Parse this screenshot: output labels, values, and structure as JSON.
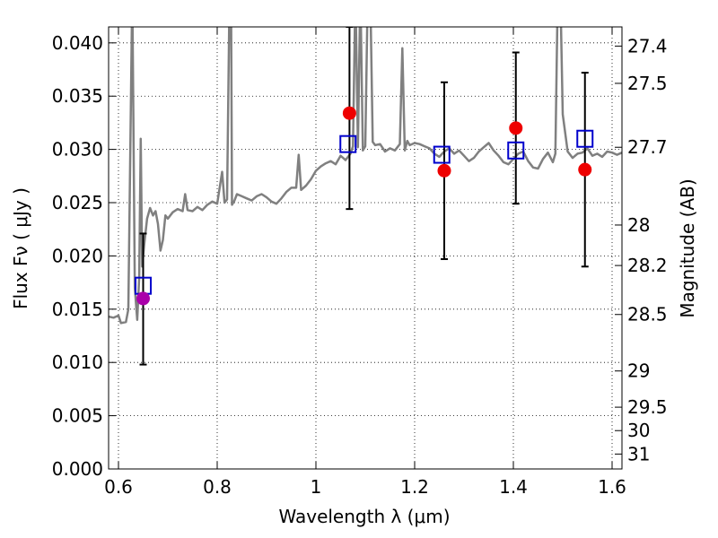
{
  "chart_data": {
    "type": "line",
    "xlabel": "Wavelength  λ (μm)",
    "ylabel": "Flux  Fν  ( μJy )",
    "ylabel_right": "Magnitude (AB)",
    "xlim": [
      0.58,
      1.62
    ],
    "ylim": [
      0.0,
      0.0415
    ],
    "x_ticks": [
      0.6,
      0.8,
      1.0,
      1.2,
      1.4,
      1.6
    ],
    "x_tick_labels": [
      "0.6",
      "0.8",
      "1",
      "1.2",
      "1.4",
      "1.6"
    ],
    "y_ticks": [
      0.0,
      0.005,
      0.01,
      0.015,
      0.02,
      0.025,
      0.03,
      0.035,
      0.04
    ],
    "y_tick_labels": [
      "0.000",
      "0.005",
      "0.010",
      "0.015",
      "0.020",
      "0.025",
      "0.030",
      "0.035",
      "0.040"
    ],
    "right_ticks": [
      {
        "label": "27.4",
        "flux": 0.0397
      },
      {
        "label": "27.5",
        "flux": 0.0362
      },
      {
        "label": "27.7",
        "flux": 0.0302
      },
      {
        "label": "28",
        "flux": 0.0229
      },
      {
        "label": "28.2",
        "flux": 0.0191
      },
      {
        "label": "28.5",
        "flux": 0.0145
      },
      {
        "label": "29",
        "flux": 0.0092
      },
      {
        "label": "29.5",
        "flux": 0.0058
      },
      {
        "label": "30",
        "flux": 0.0036
      },
      {
        "label": "31",
        "flux": 0.0014
      }
    ],
    "grid": true,
    "colors": {
      "spectrum": "#808080",
      "model_points": "#0000cc",
      "observed_points": "#ee0000",
      "observed_point_first": "#aa00aa",
      "errorbar": "#000000"
    },
    "spectrum": {
      "x": [
        0.58,
        0.59,
        0.6,
        0.605,
        0.615,
        0.62,
        0.628,
        0.633,
        0.638,
        0.642,
        0.645,
        0.648,
        0.652,
        0.658,
        0.664,
        0.67,
        0.675,
        0.68,
        0.685,
        0.69,
        0.695,
        0.7,
        0.71,
        0.72,
        0.73,
        0.735,
        0.74,
        0.75,
        0.76,
        0.77,
        0.78,
        0.79,
        0.8,
        0.81,
        0.815,
        0.82,
        0.825,
        0.828,
        0.83,
        0.835,
        0.84,
        0.85,
        0.86,
        0.87,
        0.88,
        0.89,
        0.9,
        0.91,
        0.92,
        0.93,
        0.94,
        0.95,
        0.96,
        0.965,
        0.97,
        0.98,
        0.99,
        1.0,
        1.01,
        1.02,
        1.03,
        1.04,
        1.05,
        1.06,
        1.07,
        1.075,
        1.08,
        1.085,
        1.09,
        1.095,
        1.1,
        1.105,
        1.11,
        1.115,
        1.12,
        1.13,
        1.14,
        1.15,
        1.16,
        1.17,
        1.175,
        1.18,
        1.185,
        1.19,
        1.2,
        1.21,
        1.22,
        1.23,
        1.24,
        1.25,
        1.26,
        1.27,
        1.28,
        1.29,
        1.3,
        1.31,
        1.32,
        1.33,
        1.34,
        1.35,
        1.36,
        1.37,
        1.38,
        1.39,
        1.4,
        1.41,
        1.42,
        1.43,
        1.44,
        1.45,
        1.46,
        1.47,
        1.48,
        1.485,
        1.49,
        1.495,
        1.5,
        1.51,
        1.52,
        1.53,
        1.54,
        1.55,
        1.56,
        1.57,
        1.58,
        1.59,
        1.6,
        1.61,
        1.62
      ],
      "y": [
        0.0143,
        0.0142,
        0.0144,
        0.0137,
        0.0138,
        0.015,
        0.045,
        0.017,
        0.014,
        0.018,
        0.031,
        0.019,
        0.021,
        0.0235,
        0.0245,
        0.0238,
        0.0242,
        0.023,
        0.0205,
        0.0215,
        0.0238,
        0.0235,
        0.0241,
        0.0244,
        0.0242,
        0.0258,
        0.0243,
        0.0242,
        0.0246,
        0.0243,
        0.0248,
        0.0251,
        0.0249,
        0.0279,
        0.025,
        0.0253,
        0.045,
        0.045,
        0.0248,
        0.0252,
        0.0258,
        0.0256,
        0.0254,
        0.0252,
        0.0256,
        0.0258,
        0.0255,
        0.0251,
        0.0249,
        0.0254,
        0.026,
        0.0264,
        0.0264,
        0.0295,
        0.0262,
        0.0266,
        0.0272,
        0.028,
        0.0284,
        0.0287,
        0.0289,
        0.0286,
        0.0294,
        0.029,
        0.0296,
        0.0303,
        0.045,
        0.0302,
        0.045,
        0.0299,
        0.0303,
        0.045,
        0.045,
        0.0307,
        0.0304,
        0.0305,
        0.0298,
        0.0301,
        0.0299,
        0.0305,
        0.0395,
        0.0299,
        0.0308,
        0.0304,
        0.0306,
        0.0305,
        0.0303,
        0.0301,
        0.0296,
        0.0293,
        0.0298,
        0.0301,
        0.0296,
        0.0299,
        0.0294,
        0.0289,
        0.0292,
        0.0298,
        0.0302,
        0.0306,
        0.0299,
        0.0294,
        0.0288,
        0.0286,
        0.0291,
        0.0296,
        0.0298,
        0.0289,
        0.0283,
        0.0282,
        0.0291,
        0.0297,
        0.0288,
        0.0296,
        0.045,
        0.045,
        0.0333,
        0.0298,
        0.0292,
        0.0296,
        0.0297,
        0.0301,
        0.0294,
        0.0296,
        0.0293,
        0.0298,
        0.0297,
        0.0295,
        0.0297
      ]
    },
    "series": [
      {
        "marker": "square",
        "x": [
          0.65,
          1.065,
          1.255,
          1.405,
          1.545
        ],
        "y": [
          0.0172,
          0.0305,
          0.0295,
          0.0299,
          0.031
        ]
      },
      {
        "marker": "circle",
        "x": [
          0.65,
          1.068,
          1.26,
          1.405,
          1.545
        ],
        "y": [
          0.016,
          0.0334,
          0.028,
          0.032,
          0.0281
        ],
        "y_err_low": [
          0.0098,
          0.0244,
          0.0197,
          0.0249,
          0.019
        ],
        "y_err_high": [
          0.0221,
          0.0415,
          0.0363,
          0.0391,
          0.0372
        ]
      }
    ]
  }
}
